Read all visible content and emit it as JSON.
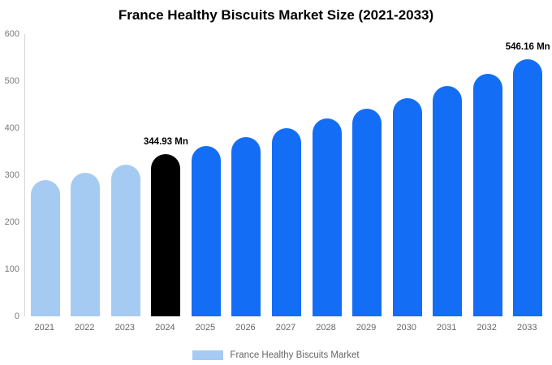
{
  "chart_data": {
    "type": "bar",
    "title": "France Healthy Biscuits Market Size (2021-2033)",
    "categories": [
      "2021",
      "2022",
      "2023",
      "2024",
      "2025",
      "2026",
      "2027",
      "2028",
      "2029",
      "2030",
      "2031",
      "2032",
      "2033"
    ],
    "values": [
      290,
      306,
      323,
      344.93,
      362,
      381,
      400,
      420,
      442,
      464,
      489,
      515,
      546.16
    ],
    "roles": [
      "past",
      "past",
      "past",
      "highlight",
      "forecast",
      "forecast",
      "forecast",
      "forecast",
      "forecast",
      "forecast",
      "forecast",
      "forecast",
      "forecast"
    ],
    "annotations": [
      {
        "index": 3,
        "text": "344.93 Mn"
      },
      {
        "index": 12,
        "text": "546.16 Mn"
      }
    ],
    "ylim": [
      0,
      600
    ],
    "yticks": [
      0,
      100,
      200,
      300,
      400,
      500,
      600
    ],
    "grid": false,
    "legend_position": "bottom"
  },
  "colors": {
    "past": "#a6cbf3",
    "highlight": "#000000",
    "forecast": "#146ef5",
    "axis_line": "#d6d6d6"
  },
  "legend": {
    "label": "France Healthy Biscuits Market",
    "swatch_color": "#a6cbf3"
  }
}
